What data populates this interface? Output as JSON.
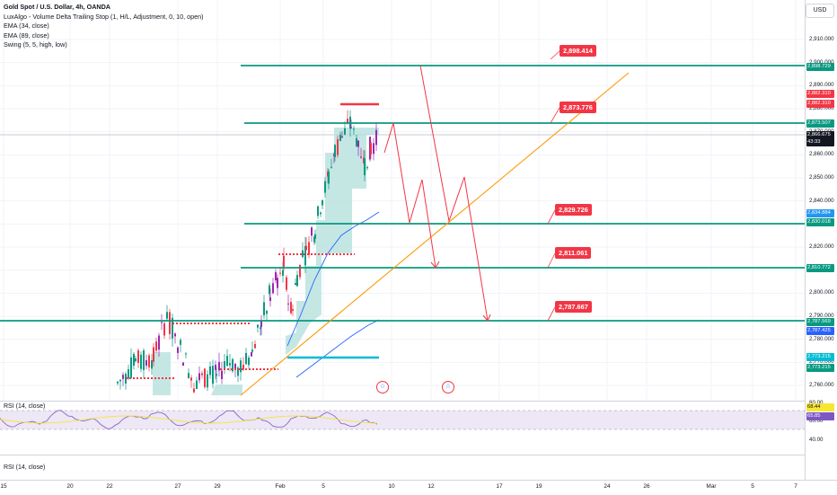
{
  "legend": {
    "title": "Gold Spot / U.S. Dollar, 4h, OANDA",
    "lines": [
      "LuxAlgo - Volume Delta Trailing Stop (1, H/L, Adjustment, 0, 10, open)",
      "EMA (34, close)",
      "EMA (89, close)",
      "Swing (5, 5, high, low)"
    ]
  },
  "currency_button": "USD",
  "price_ticks": [
    "2,910.000",
    "2,900.000",
    "2,890.000",
    "2,880.000",
    "2,870.000",
    "2,860.000",
    "2,850.000",
    "2,840.000",
    "2,830.000",
    "2,820.000",
    "2,810.000",
    "2,800.000",
    "2,790.000",
    "2,780.000",
    "2,770.000",
    "2,760.000"
  ],
  "price_badges": [
    {
      "label": "2,898.729",
      "color": "#089981"
    },
    {
      "label": "2,882.310",
      "color": "#f23645"
    },
    {
      "label": "2,882.310",
      "color": "#f23645"
    },
    {
      "label": "2,873.507",
      "color": "#089981"
    },
    {
      "label": "2,866.675",
      "color": "#131722"
    },
    {
      "label": "43:33",
      "color": "#131722"
    },
    {
      "label": "2,834.884",
      "color": "#2196f3"
    },
    {
      "label": "2,830.018",
      "color": "#089981"
    },
    {
      "label": "2,810.772",
      "color": "#089981"
    },
    {
      "label": "2,787.569",
      "color": "#089981"
    },
    {
      "label": "2,787.425",
      "color": "#2962ff"
    },
    {
      "label": "2,773.215",
      "color": "#00bcd4"
    },
    {
      "label": "2,773.215",
      "color": "#089981"
    }
  ],
  "callouts": [
    "2,898.414",
    "2,873.776",
    "2,829.726",
    "2,811.061",
    "2,787.667"
  ],
  "rsi": {
    "label": "RSI (14, close)",
    "label2": "RSI (14, close)",
    "ticks": [
      "80.00",
      "60.00",
      "40.00"
    ],
    "badges": [
      {
        "label": "68.44",
        "color": "#f7e633",
        "text": "#131722"
      },
      {
        "label": "65.85",
        "color": "#7e57c2",
        "text": "#ffffff"
      }
    ]
  },
  "time_axis": [
    "15",
    "20",
    "22",
    "27",
    "29",
    "Feb",
    "5",
    "10",
    "12",
    "17",
    "19",
    "24",
    "26",
    "Mar",
    "5",
    "7"
  ],
  "event_icons": [
    "us-flag",
    "us-flag"
  ]
}
